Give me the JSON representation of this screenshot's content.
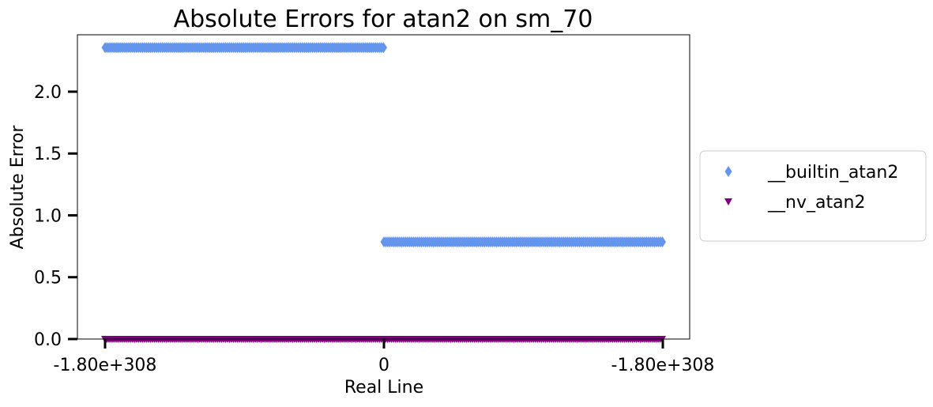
{
  "chart_data": {
    "type": "scatter",
    "title": "Absolute Errors for atan2 on sm_70",
    "xlabel": "Real Line",
    "ylabel": "Absolute Error",
    "xlim": [
      -1.0,
      1.0
    ],
    "ylim": [
      0,
      2.46
    ],
    "x_ticks": [
      {
        "value": -1.0,
        "label": "-1.80e+308"
      },
      {
        "value": 0.0,
        "label": "0"
      },
      {
        "value": 1.0,
        "label": "-1.80e+308"
      }
    ],
    "y_ticks": [
      {
        "value": 0.0,
        "label": "0.0"
      },
      {
        "value": 0.5,
        "label": "0.5"
      },
      {
        "value": 1.0,
        "label": "1.0"
      },
      {
        "value": 1.5,
        "label": "1.5"
      },
      {
        "value": 2.0,
        "label": "2.0"
      }
    ],
    "grid": false,
    "legend_position": "center-right-outside",
    "series": [
      {
        "name": "__builtin_atan2",
        "marker": "thin_diamond",
        "color": "#6495ED",
        "segments": [
          {
            "x_start": -1.0,
            "x_end": 0.0,
            "y": 2.356
          },
          {
            "x_start": 0.0,
            "x_end": 1.0,
            "y": 0.785
          }
        ]
      },
      {
        "name": "__nv_atan2",
        "marker": "triangle_down",
        "color": "#800080",
        "segments": [
          {
            "x_start": -1.0,
            "x_end": 1.0,
            "y": 0.0
          }
        ]
      }
    ]
  }
}
